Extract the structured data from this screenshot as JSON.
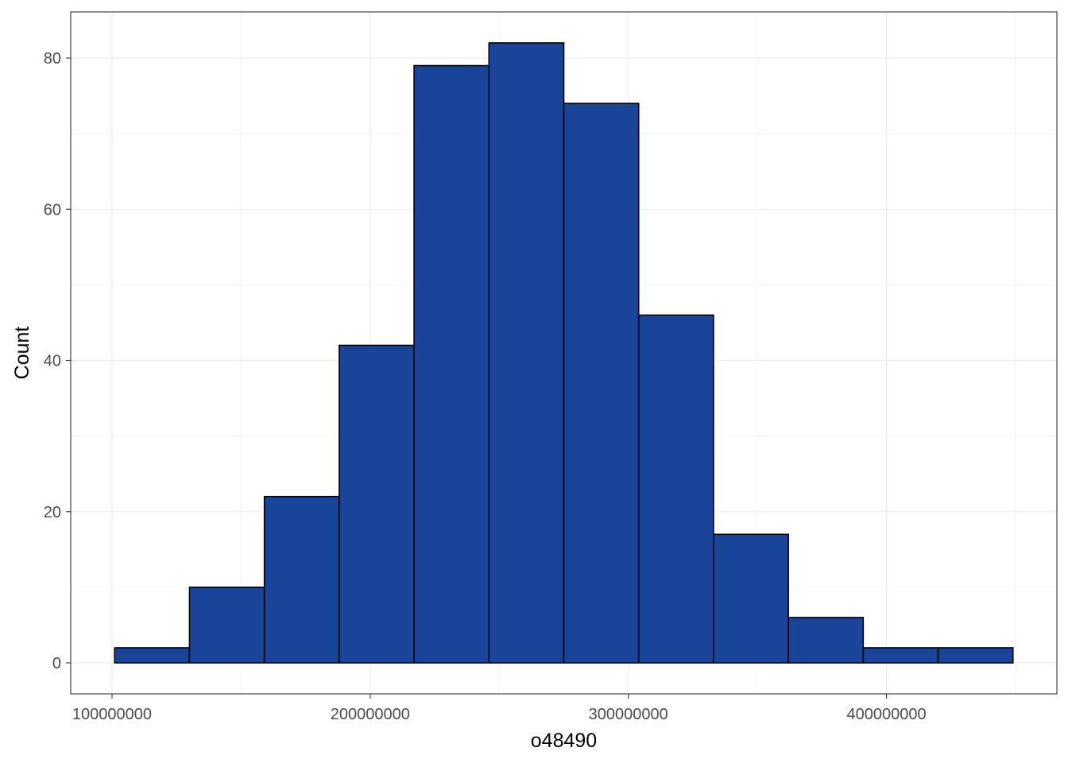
{
  "chart_data": {
    "type": "bar",
    "subtype": "histogram",
    "title": "",
    "xlabel": "o48490",
    "ylabel": "Count",
    "bins": [
      {
        "x0": 101000000,
        "x1": 130000000,
        "count": 2
      },
      {
        "x0": 130000000,
        "x1": 159000000,
        "count": 10
      },
      {
        "x0": 159000000,
        "x1": 188000000,
        "count": 22
      },
      {
        "x0": 188000000,
        "x1": 217000000,
        "count": 42
      },
      {
        "x0": 217000000,
        "x1": 246000000,
        "count": 79
      },
      {
        "x0": 246000000,
        "x1": 275000000,
        "count": 82
      },
      {
        "x0": 275000000,
        "x1": 304000000,
        "count": 74
      },
      {
        "x0": 304000000,
        "x1": 333000000,
        "count": 46
      },
      {
        "x0": 333000000,
        "x1": 362000000,
        "count": 17
      },
      {
        "x0": 362000000,
        "x1": 391000000,
        "count": 6
      },
      {
        "x0": 391000000,
        "x1": 420000000,
        "count": 2
      },
      {
        "x0": 420000000,
        "x1": 449000000,
        "count": 2
      }
    ],
    "xlim": [
      84000000,
      466000000
    ],
    "ylim": [
      -4.1,
      86.1
    ],
    "x_ticks": [
      100000000,
      200000000,
      300000000,
      400000000
    ],
    "x_tick_labels": [
      "100000000",
      "200000000",
      "300000000",
      "400000000"
    ],
    "y_ticks": [
      0,
      20,
      40,
      60,
      80
    ],
    "y_tick_labels": [
      "0",
      "20",
      "40",
      "60",
      "80"
    ],
    "grid": true,
    "legend": "none",
    "colors": {
      "bar_fill": "#18449A",
      "bar_stroke": "#000000",
      "panel_border": "#333333",
      "grid_major": "#EBEBEB",
      "grid_minor": "#F5F5F5"
    }
  }
}
